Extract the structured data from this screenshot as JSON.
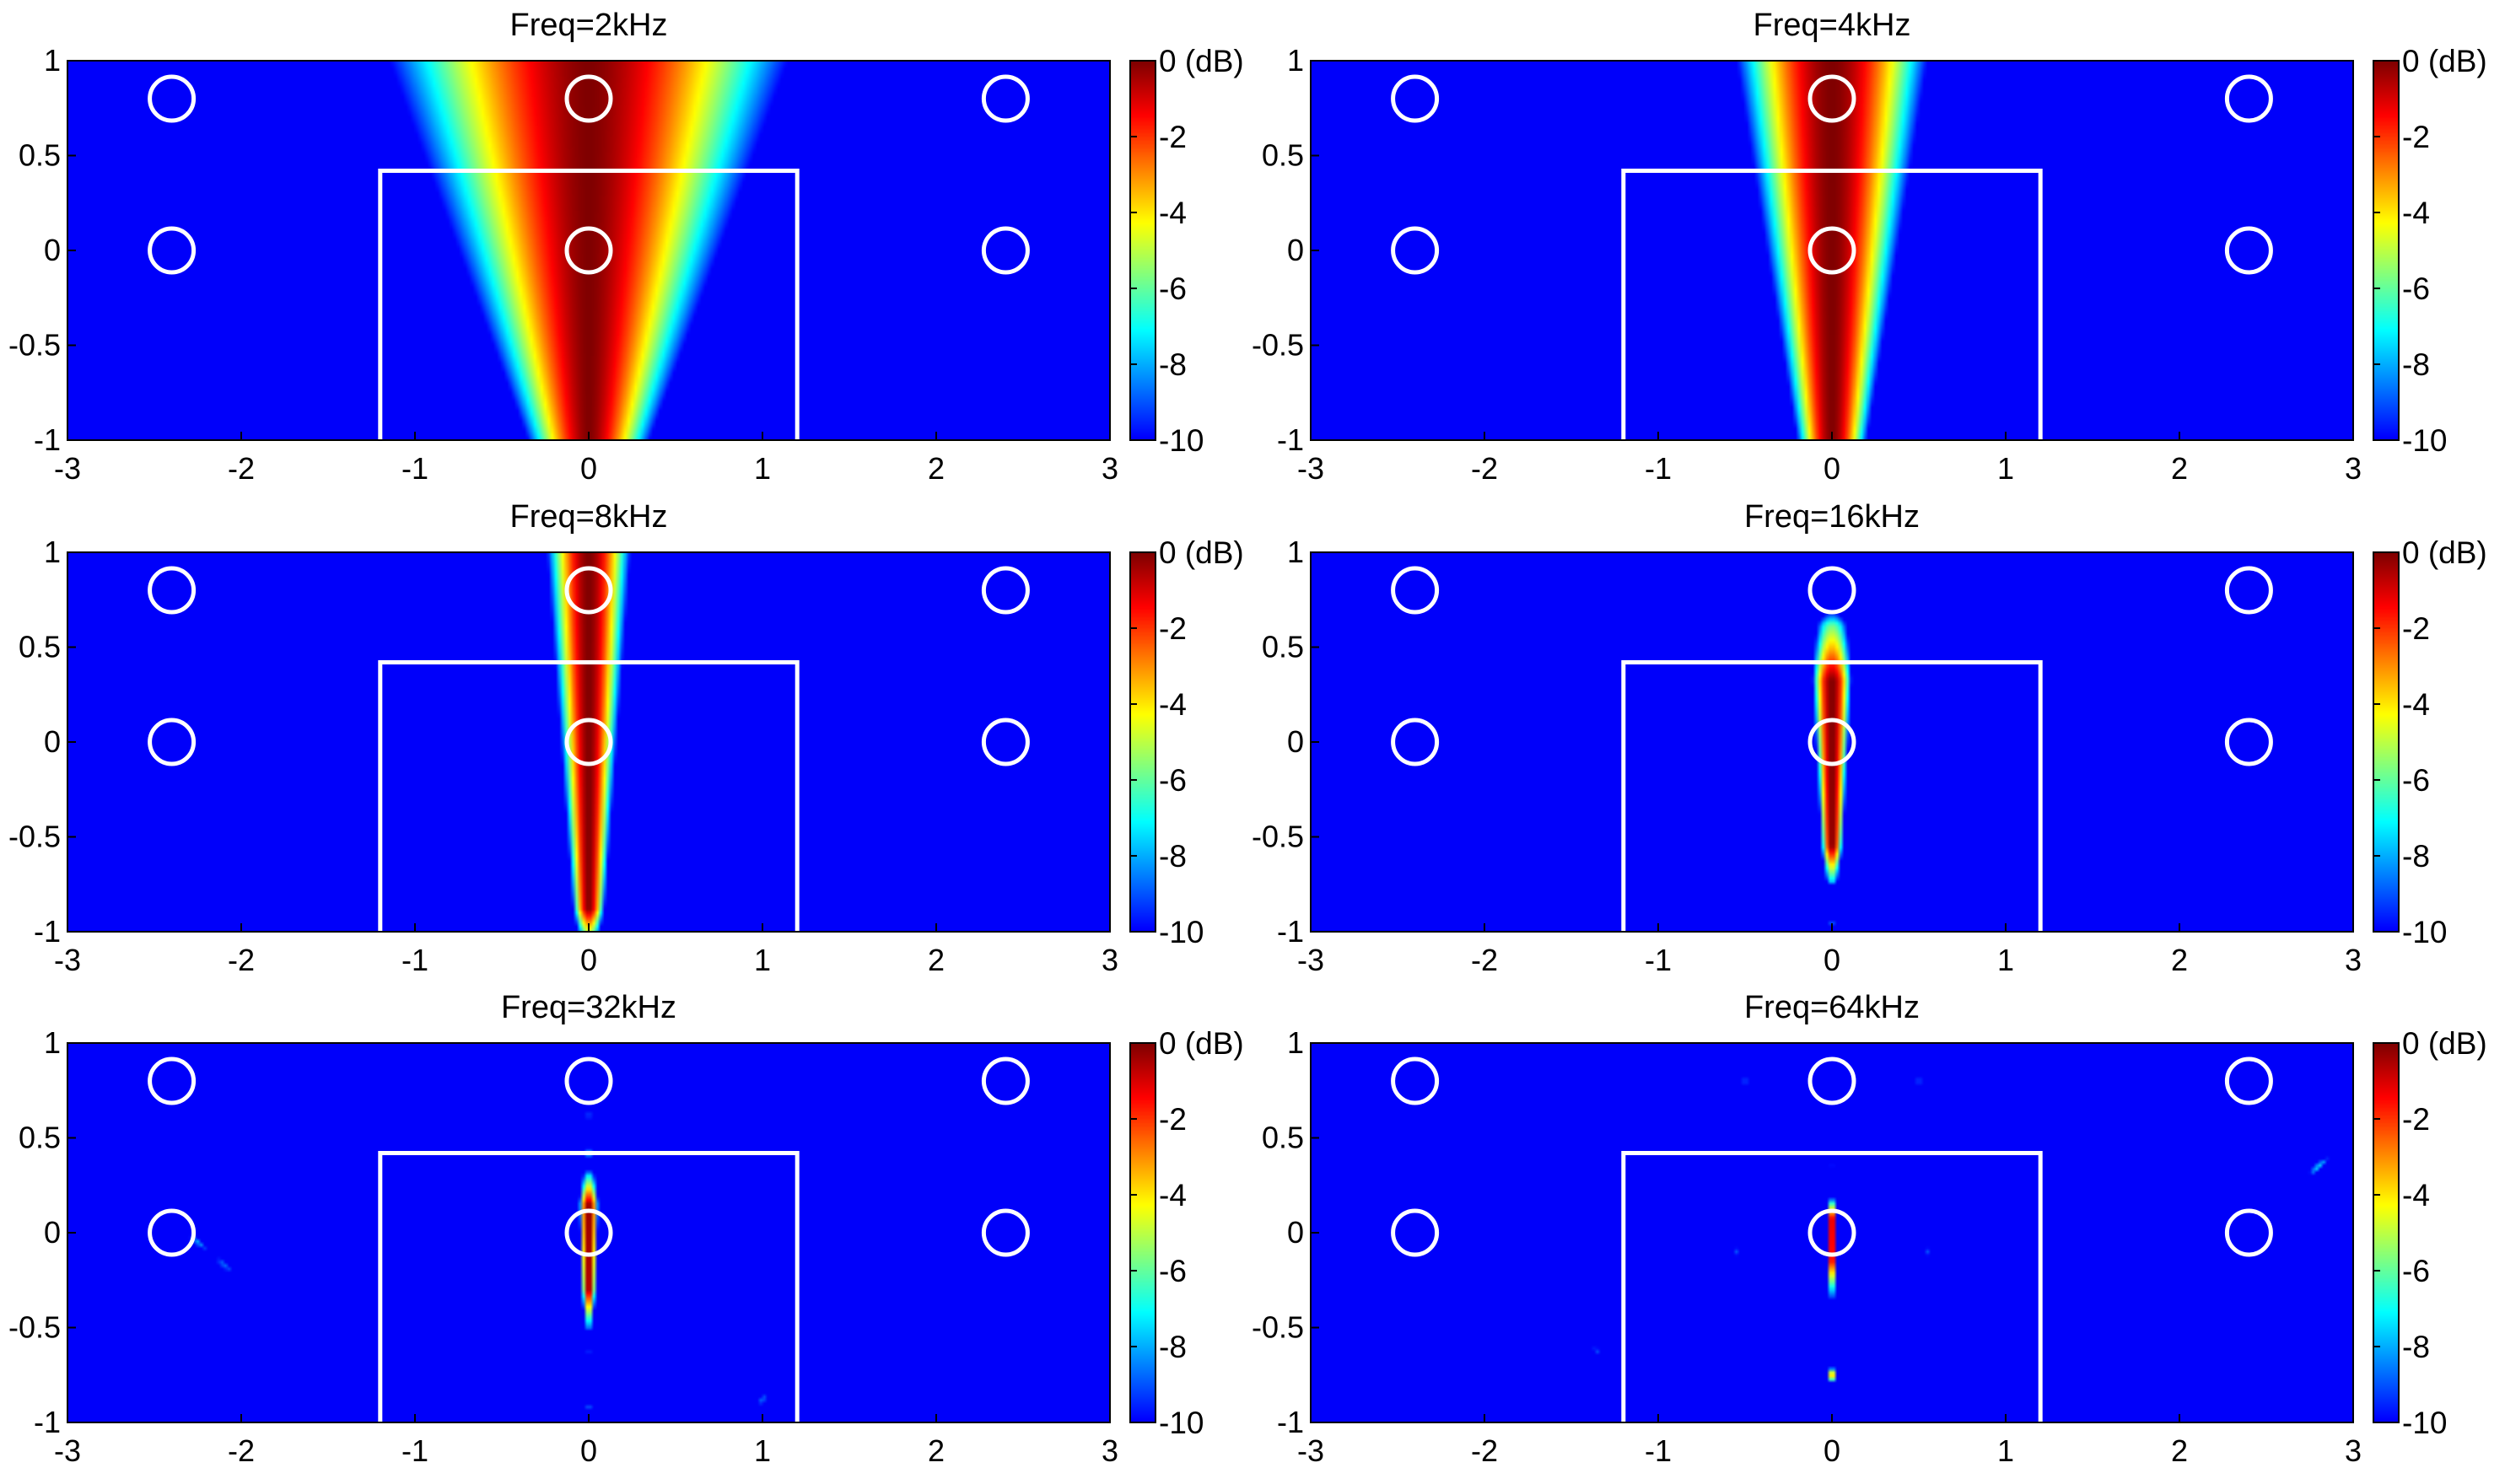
{
  "chart_data": [
    {
      "type": "heatmap",
      "title": "Freq=2kHz",
      "xlim": [
        -3,
        3
      ],
      "ylim": [
        -1,
        1
      ],
      "xticks": [
        "-3",
        "-2",
        "-1",
        "0",
        "1",
        "2",
        "3"
      ],
      "yticks": [
        "1",
        "0.5",
        "0",
        "-0.5",
        "-1"
      ],
      "colorbar": {
        "ticks": [
          "0 (dB)",
          "-2",
          "-4",
          "-6",
          "-8",
          "-10"
        ],
        "range": [
          -10,
          0
        ],
        "colormap": "jet"
      },
      "rectangle": {
        "x": [
          -1.2,
          1.2
        ],
        "y": [
          -1,
          0.42
        ]
      },
      "circles": [
        {
          "x": -2.4,
          "y": 0.8
        },
        {
          "x": 0,
          "y": 0.8
        },
        {
          "x": 2.4,
          "y": 0.8
        },
        {
          "x": -2.4,
          "y": 0
        },
        {
          "x": 0,
          "y": 0
        },
        {
          "x": 2.4,
          "y": 0
        }
      ],
      "beam": {
        "center_x": 0,
        "halfwidth_at_top": 1.15,
        "halfwidth_at_bottom": 0.35,
        "sharpness": 1.6,
        "y_max": 1.0,
        "y_min": -1.0
      },
      "spots": []
    },
    {
      "type": "heatmap",
      "title": "Freq=4kHz",
      "xlim": [
        -3,
        3
      ],
      "ylim": [
        -1,
        1
      ],
      "xticks": [
        "-3",
        "-2",
        "-1",
        "0",
        "1",
        "2",
        "3"
      ],
      "yticks": [
        "1",
        "0.5",
        "0",
        "-0.5",
        "-1"
      ],
      "colorbar": {
        "ticks": [
          "0 (dB)",
          "-2",
          "-4",
          "-6",
          "-8",
          "-10"
        ],
        "range": [
          -10,
          0
        ],
        "colormap": "jet"
      },
      "rectangle": {
        "x": [
          -1.2,
          1.2
        ],
        "y": [
          -1,
          0.42
        ]
      },
      "circles": [
        {
          "x": -2.4,
          "y": 0.8
        },
        {
          "x": 0,
          "y": 0.8
        },
        {
          "x": 2.4,
          "y": 0.8
        },
        {
          "x": -2.4,
          "y": 0
        },
        {
          "x": 0,
          "y": 0
        },
        {
          "x": 2.4,
          "y": 0
        }
      ],
      "beam": {
        "center_x": 0,
        "halfwidth_at_top": 0.55,
        "halfwidth_at_bottom": 0.2,
        "sharpness": 1.8,
        "y_max": 1.0,
        "y_min": -1.0
      },
      "spots": []
    },
    {
      "type": "heatmap",
      "title": "Freq=8kHz",
      "xlim": [
        -3,
        3
      ],
      "ylim": [
        -1,
        1
      ],
      "xticks": [
        "-3",
        "-2",
        "-1",
        "0",
        "1",
        "2",
        "3"
      ],
      "yticks": [
        "1",
        "0.5",
        "0",
        "-0.5",
        "-1"
      ],
      "colorbar": {
        "ticks": [
          "0 (dB)",
          "-2",
          "-4",
          "-6",
          "-8",
          "-10"
        ],
        "range": [
          -10,
          0
        ],
        "colormap": "jet"
      },
      "rectangle": {
        "x": [
          -1.2,
          1.2
        ],
        "y": [
          -1,
          0.42
        ]
      },
      "circles": [
        {
          "x": -2.4,
          "y": 0.8
        },
        {
          "x": 0,
          "y": 0.8
        },
        {
          "x": 2.4,
          "y": 0.8
        },
        {
          "x": -2.4,
          "y": 0
        },
        {
          "x": 0,
          "y": 0
        },
        {
          "x": 2.4,
          "y": 0
        }
      ],
      "beam": {
        "center_x": 0,
        "halfwidth_at_top": 0.24,
        "halfwidth_at_bottom": 0.09,
        "sharpness": 1.8,
        "y_max": 1.0,
        "y_min": -0.88
      },
      "spots": [
        {
          "x": 0,
          "y": -0.9,
          "db": -8.5,
          "sx": 0.06,
          "sy": 0.03
        }
      ]
    },
    {
      "type": "heatmap",
      "title": "Freq=16kHz",
      "xlim": [
        -3,
        3
      ],
      "ylim": [
        -1,
        1
      ],
      "xticks": [
        "-3",
        "-2",
        "-1",
        "0",
        "1",
        "2",
        "3"
      ],
      "yticks": [
        "1",
        "0.5",
        "0",
        "-0.5",
        "-1"
      ],
      "colorbar": {
        "ticks": [
          "0 (dB)",
          "-2",
          "-4",
          "-6",
          "-8",
          "-10"
        ],
        "range": [
          -10,
          0
        ],
        "colormap": "jet"
      },
      "rectangle": {
        "x": [
          -1.2,
          1.2
        ],
        "y": [
          -1,
          0.42
        ]
      },
      "circles": [
        {
          "x": -2.4,
          "y": 0.8
        },
        {
          "x": 0,
          "y": 0.8
        },
        {
          "x": 2.4,
          "y": 0.8
        },
        {
          "x": -2.4,
          "y": 0
        },
        {
          "x": 0,
          "y": 0
        },
        {
          "x": 2.4,
          "y": 0
        }
      ],
      "beam": {
        "center_x": 0,
        "halfwidth_at_top": 0.13,
        "halfwidth_at_bottom": 0.06,
        "sharpness": 2.0,
        "y_max": 0.62,
        "y_min": -0.55,
        "top_fade": -6.0
      },
      "spots": [
        {
          "x": 0,
          "y": -0.62,
          "db": -8.5,
          "sx": 0.04,
          "sy": 0.03
        },
        {
          "x": 0,
          "y": -0.95,
          "db": -8.5,
          "sx": 0.03,
          "sy": 0.02
        }
      ]
    },
    {
      "type": "heatmap",
      "title": "Freq=32kHz",
      "xlim": [
        -3,
        3
      ],
      "ylim": [
        -1,
        1
      ],
      "xticks": [
        "-3",
        "-2",
        "-1",
        "0",
        "1",
        "2",
        "3"
      ],
      "yticks": [
        "1",
        "0.5",
        "0",
        "-0.5",
        "-1"
      ],
      "colorbar": {
        "ticks": [
          "0 (dB)",
          "-2",
          "-4",
          "-6",
          "-8",
          "-10"
        ],
        "range": [
          -10,
          0
        ],
        "colormap": "jet"
      },
      "rectangle": {
        "x": [
          -1.2,
          1.2
        ],
        "y": [
          -1,
          0.42
        ]
      },
      "circles": [
        {
          "x": -2.4,
          "y": 0.8
        },
        {
          "x": 0,
          "y": 0.8
        },
        {
          "x": 2.4,
          "y": 0.8
        },
        {
          "x": -2.4,
          "y": 0
        },
        {
          "x": 0,
          "y": 0
        },
        {
          "x": 2.4,
          "y": 0
        }
      ],
      "beam": {
        "center_x": 0,
        "halfwidth_at_top": 0.06,
        "halfwidth_at_bottom": 0.04,
        "sharpness": 2.0,
        "y_max": 0.3,
        "y_min": -0.3,
        "top_fade": -7.0
      },
      "spots": [
        {
          "x": 0,
          "y": 0.42,
          "db": -8.0,
          "sx": 0.04,
          "sy": 0.04
        },
        {
          "x": 0,
          "y": 0.62,
          "db": -9.0,
          "sx": 0.03,
          "sy": 0.05
        },
        {
          "x": 0,
          "y": -0.5,
          "db": -8.5,
          "sx": 0.025,
          "sy": 0.02
        },
        {
          "x": 0,
          "y": -0.62,
          "db": -8.5,
          "sx": 0.025,
          "sy": 0.02
        },
        {
          "x": 0,
          "y": -0.92,
          "db": -8.5,
          "sx": 0.025,
          "sy": 0.02
        },
        {
          "x": -2.25,
          "y": -0.05,
          "db": -8.0,
          "sx": 0.09,
          "sy": 0.02,
          "angle": -40
        },
        {
          "x": -2.1,
          "y": -0.17,
          "db": -8.5,
          "sx": 0.1,
          "sy": 0.02,
          "angle": -40
        },
        {
          "x": 1.0,
          "y": -0.88,
          "db": -8.5,
          "sx": 0.06,
          "sy": 0.02,
          "angle": 45
        }
      ]
    },
    {
      "type": "heatmap",
      "title": "Freq=64kHz",
      "xlim": [
        -3,
        3
      ],
      "ylim": [
        -1,
        1
      ],
      "xticks": [
        "-3",
        "-2",
        "-1",
        "0",
        "1",
        "2",
        "3"
      ],
      "yticks": [
        "1",
        "0.5",
        "0",
        "-0.5",
        "-1"
      ],
      "colorbar": {
        "ticks": [
          "0 (dB)",
          "-2",
          "-4",
          "-6",
          "-8",
          "-10"
        ],
        "range": [
          -10,
          0
        ],
        "colormap": "jet"
      },
      "rectangle": {
        "x": [
          -1.2,
          1.2
        ],
        "y": [
          -1,
          0.42
        ]
      },
      "circles": [
        {
          "x": -2.4,
          "y": 0.8
        },
        {
          "x": 0,
          "y": 0.8
        },
        {
          "x": 2.4,
          "y": 0.8
        },
        {
          "x": -2.4,
          "y": 0
        },
        {
          "x": 0,
          "y": 0
        },
        {
          "x": 2.4,
          "y": 0
        }
      ],
      "beam": {
        "center_x": 0,
        "halfwidth_at_top": 0.03,
        "halfwidth_at_bottom": 0.025,
        "sharpness": 2.0,
        "y_max": 0.15,
        "y_min": -0.15,
        "top_fade": -5.0
      },
      "spots": [
        {
          "x": 0,
          "y": -0.75,
          "db": -3.0,
          "sx": 0.02,
          "sy": 0.03
        },
        {
          "x": 0,
          "y": -0.55,
          "db": -8.0,
          "sx": 0.015,
          "sy": 0.02
        },
        {
          "x": 0,
          "y": -0.42,
          "db": -8.5,
          "sx": 0.015,
          "sy": 0.02
        },
        {
          "x": 0,
          "y": 0.35,
          "db": -8.0,
          "sx": 0.015,
          "sy": 0.03
        },
        {
          "x": 0,
          "y": 0.55,
          "db": -8.5,
          "sx": 0.015,
          "sy": 0.03
        },
        {
          "x": 0,
          "y": 0.95,
          "db": -9.0,
          "sx": 0.015,
          "sy": 0.03
        },
        {
          "x": 2.8,
          "y": 0.35,
          "db": -7.5,
          "sx": 0.09,
          "sy": 0.02,
          "angle": 40
        },
        {
          "x": -1.35,
          "y": -0.62,
          "db": -8.5,
          "sx": 0.05,
          "sy": 0.015,
          "angle": -40
        },
        {
          "x": 0.5,
          "y": 0.8,
          "db": -9.0,
          "sx": 0.03,
          "sy": 0.05
        },
        {
          "x": -0.5,
          "y": 0.8,
          "db": -9.0,
          "sx": 0.03,
          "sy": 0.05
        },
        {
          "x": -0.55,
          "y": -0.1,
          "db": -9.0,
          "sx": 0.02,
          "sy": 0.04
        },
        {
          "x": 0.55,
          "y": -0.1,
          "db": -9.0,
          "sx": 0.02,
          "sy": 0.04
        },
        {
          "x": -0.9,
          "y": 0.35,
          "db": -9.0,
          "sx": 0.02,
          "sy": 0.04
        },
        {
          "x": 0.9,
          "y": 0.35,
          "db": -9.0,
          "sx": 0.02,
          "sy": 0.04
        }
      ]
    }
  ]
}
